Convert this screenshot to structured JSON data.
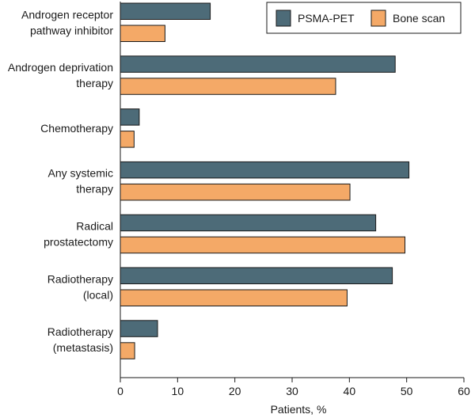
{
  "chart_data": {
    "type": "bar",
    "orientation": "horizontal",
    "categories": [
      [
        "Androgen receptor",
        "pathway inhibitor"
      ],
      [
        "Androgen deprivation",
        "therapy"
      ],
      [
        "Chemotherapy"
      ],
      [
        "Any systemic",
        "therapy"
      ],
      [
        "Radical",
        "prostatectomy"
      ],
      [
        "Radiotherapy",
        "(local)"
      ],
      [
        "Radiotherapy",
        "(metastasis)"
      ]
    ],
    "series": [
      {
        "name": "PSMA-PET",
        "color": "#4d6b78",
        "values": [
          15.7,
          48.0,
          3.3,
          50.4,
          44.6,
          47.5,
          6.5
        ]
      },
      {
        "name": "Bone scan",
        "color": "#f4a967",
        "values": [
          7.8,
          37.6,
          2.4,
          40.1,
          49.7,
          39.6,
          2.5
        ]
      }
    ],
    "xlabel": "Patients, %",
    "xlim": [
      0,
      60
    ],
    "xticks": [
      0,
      10,
      20,
      30,
      40,
      50,
      60
    ],
    "grid": false,
    "legend_position": "top-right"
  }
}
